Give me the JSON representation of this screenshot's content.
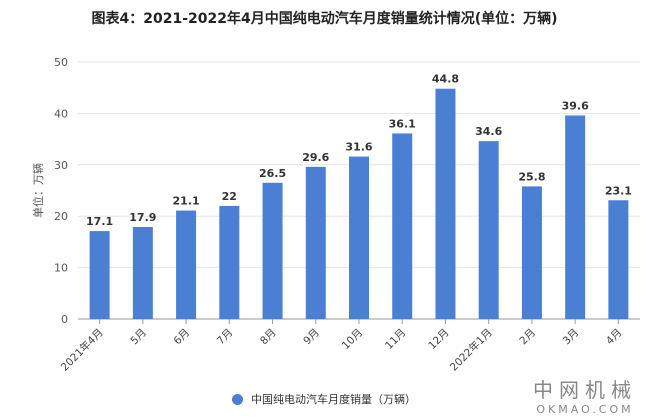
{
  "chart_data": {
    "type": "bar",
    "title": "图表4：2021-2022年4月中国纯电动汽车月度销量统计情况(单位：万辆)",
    "ylabel": "单位：万辆",
    "xlabel": "",
    "ylim": [
      0,
      50
    ],
    "yticks": [
      0,
      10,
      20,
      30,
      40,
      50
    ],
    "categories": [
      "2021年4月",
      "5月",
      "6月",
      "7月",
      "8月",
      "9月",
      "10月",
      "11月",
      "12月",
      "2022年1月",
      "2月",
      "3月",
      "4月"
    ],
    "series": [
      {
        "name": "中国纯电动汽车月度销量（万辆）",
        "values": [
          17.1,
          17.9,
          21.1,
          22,
          26.5,
          29.6,
          31.6,
          36.1,
          44.8,
          34.6,
          25.8,
          39.6,
          23.1
        ],
        "color": "#4a7fd4"
      }
    ],
    "grid": true,
    "legend": "bottom"
  },
  "brand": {
    "cn": "中网机械",
    "en": "OKMAO.COM"
  }
}
